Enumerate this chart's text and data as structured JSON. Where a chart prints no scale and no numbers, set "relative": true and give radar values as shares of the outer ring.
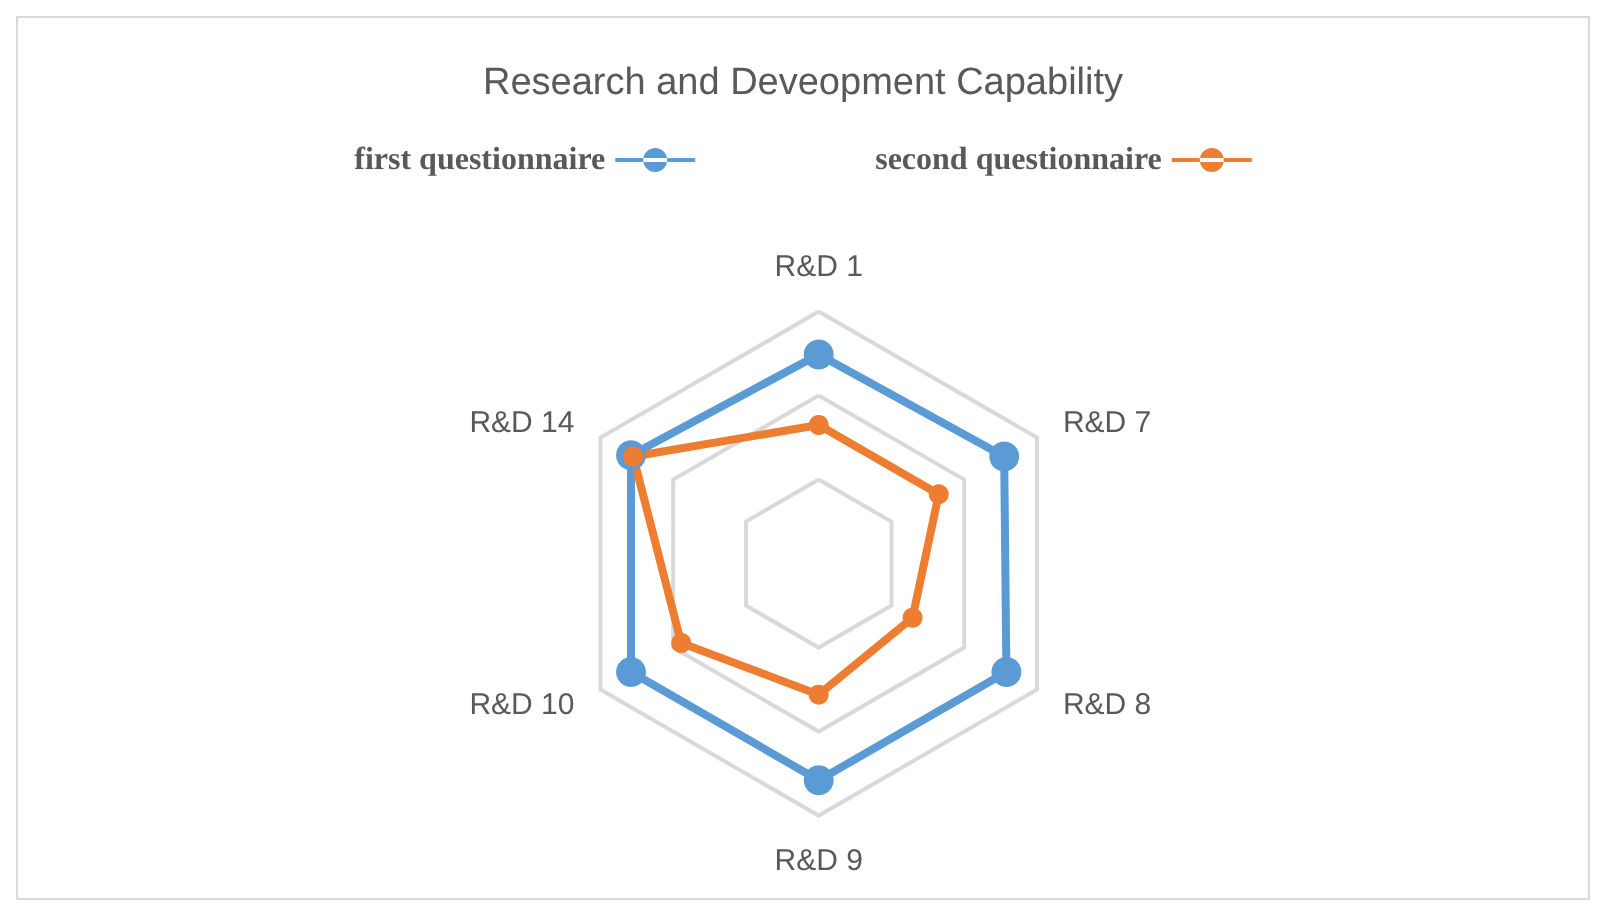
{
  "chart_data": {
    "type": "radar",
    "title": "Research and Deveopment Capability",
    "relative": true,
    "legend": "top",
    "marker": "circle",
    "line_style": "solid",
    "categories": [
      "R&D 1",
      "R&D 7",
      "R&D 8",
      "R&D 9",
      "R&D 10",
      "R&D 14"
    ],
    "series": [
      {
        "name": "first questionnaire",
        "color": "#5b9bd5",
        "values": [
          0.83,
          0.85,
          0.86,
          0.86,
          0.86,
          0.86
        ]
      },
      {
        "name": "second questionnaire",
        "color": "#ed7d31",
        "values": [
          0.55,
          0.55,
          0.43,
          0.52,
          0.63,
          0.85
        ]
      }
    ]
  }
}
